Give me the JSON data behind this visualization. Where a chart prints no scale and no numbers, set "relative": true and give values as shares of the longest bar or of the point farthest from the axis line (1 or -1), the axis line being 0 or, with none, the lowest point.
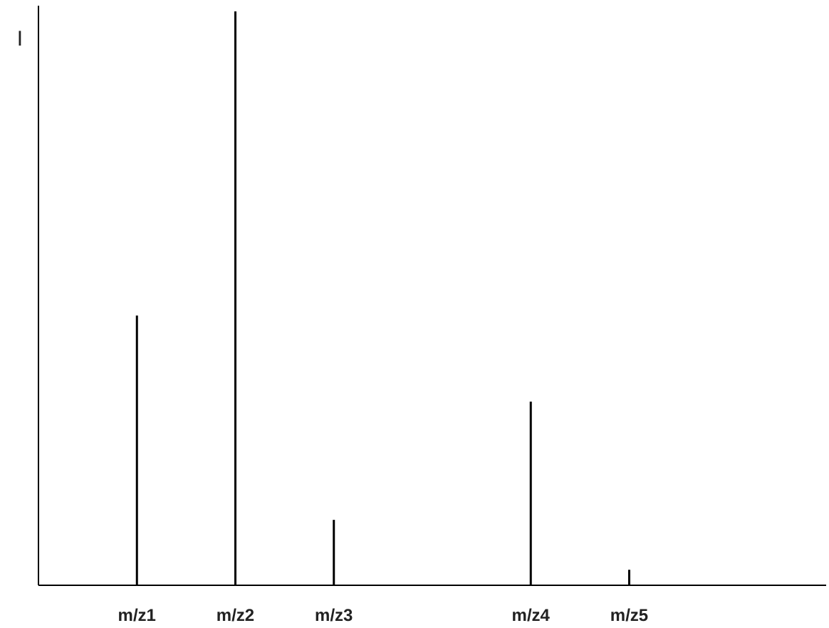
{
  "chart_data": {
    "type": "bar",
    "relative": true,
    "ylabel": "I",
    "color": "#000000",
    "categories": [
      "m/z1",
      "m/z2",
      "m/z3",
      null,
      "m/z4",
      "m/z5",
      null
    ],
    "values": [
      0.47,
      1,
      0.114,
      null,
      0.32,
      0.027,
      null
    ]
  }
}
